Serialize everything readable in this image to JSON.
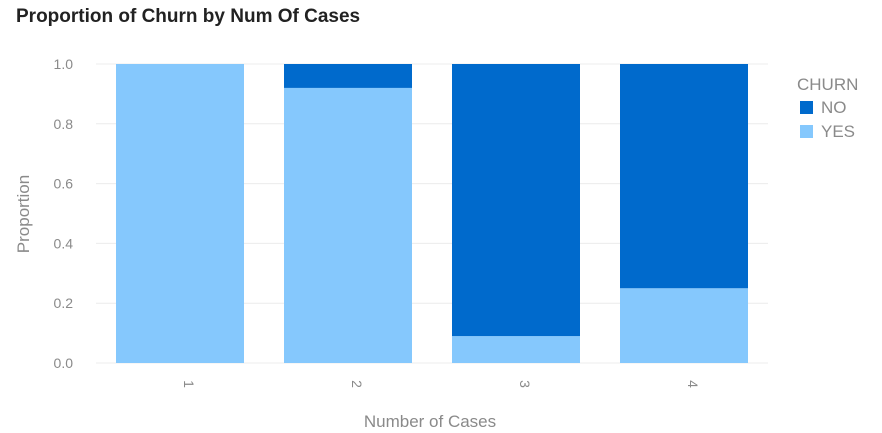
{
  "chart_data": {
    "type": "bar",
    "stacked": true,
    "title": "Proportion of Churn by Num Of Cases",
    "xlabel": "Number of Cases",
    "ylabel": "Proportion",
    "categories": [
      "1",
      "2",
      "3",
      "4"
    ],
    "ylim": [
      0,
      1
    ],
    "yticks": [
      "0.0",
      "0.2",
      "0.4",
      "0.6",
      "0.8",
      "1.0"
    ],
    "grid": true,
    "legend": {
      "title": "CHURN",
      "placement": "top-right"
    },
    "series": [
      {
        "name": "YES",
        "color": "#85c8fd",
        "values": [
          1.0,
          0.92,
          0.09,
          0.25
        ]
      },
      {
        "name": "NO",
        "color": "#006acc",
        "values": [
          0.0,
          0.08,
          0.91,
          0.75
        ]
      }
    ],
    "legend_order": [
      "NO",
      "YES"
    ]
  }
}
